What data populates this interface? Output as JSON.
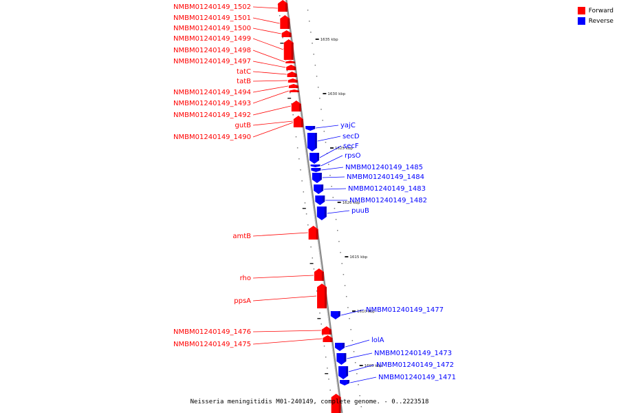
{
  "legend": {
    "forward": {
      "label": "Forward",
      "color": "#ff0000"
    },
    "reverse": {
      "label": "Reverse",
      "color": "#0000ff"
    }
  },
  "caption": "Neisseria meningitidis M01-240149, complete genome. - 0..2223518",
  "scale_ticks": [
    "1635 kbp",
    "1630 kbp",
    "1625 kbp",
    "1620 kbp",
    "1615 kbp",
    "1610 kbp",
    "1605 kbp"
  ],
  "forward_genes": [
    "NMBM01240149_1502",
    "NMBM01240149_1501",
    "NMBM01240149_1500",
    "NMBM01240149_1499",
    "NMBM01240149_1498",
    "NMBM01240149_1497",
    "tatC",
    "tatB",
    "NMBM01240149_1494",
    "NMBM01240149_1493",
    "NMBM01240149_1492",
    "gutB",
    "NMBM01240149_1490",
    "amtB",
    "rho",
    "ppsA",
    "NMBM01240149_1476",
    "NMBM01240149_1475"
  ],
  "reverse_genes": [
    "yajC",
    "secD",
    "secF",
    "rpsO",
    "NMBM01240149_1485",
    "NMBM01240149_1484",
    "NMBM01240149_1483",
    "NMBM01240149_1482",
    "puuB",
    "NMBM01240149_1477",
    "lolA",
    "NMBM01240149_1473",
    "NMBM01240149_1472",
    "NMBM01240149_1471"
  ]
}
